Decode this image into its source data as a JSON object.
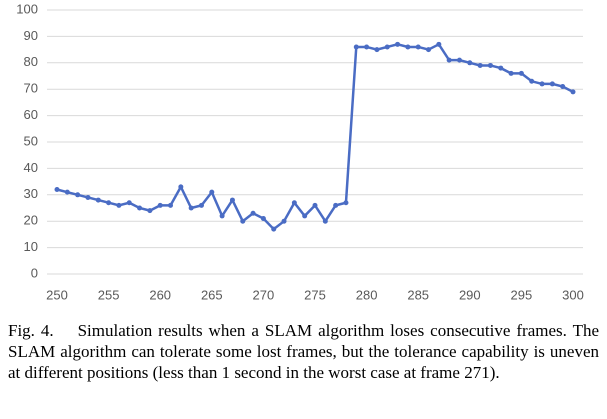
{
  "chart_data": {
    "type": "line",
    "x": [
      250,
      251,
      252,
      253,
      254,
      255,
      256,
      257,
      258,
      259,
      260,
      261,
      262,
      263,
      264,
      265,
      266,
      267,
      268,
      269,
      270,
      271,
      272,
      273,
      274,
      275,
      276,
      277,
      278,
      279,
      280,
      281,
      282,
      283,
      284,
      285,
      286,
      287,
      288,
      289,
      290,
      291,
      292,
      293,
      294,
      295,
      296,
      297,
      298,
      299,
      300
    ],
    "series": [
      {
        "color": "#4a6cc4",
        "values": [
          32,
          31,
          30,
          29,
          28,
          27,
          26,
          27,
          25,
          24,
          26,
          26,
          33,
          25,
          26,
          31,
          22,
          28,
          20,
          23,
          21,
          17,
          20,
          27,
          22,
          26,
          20,
          26,
          27,
          86,
          86,
          85,
          86,
          87,
          86,
          86,
          85,
          87,
          81,
          81,
          80,
          79,
          79,
          78,
          76,
          76,
          73,
          72,
          72,
          71,
          69
        ]
      }
    ],
    "xlim": [
      250,
      300
    ],
    "xticks": [
      250,
      255,
      260,
      265,
      270,
      275,
      280,
      285,
      290,
      295,
      300
    ],
    "ylim": [
      0,
      100
    ],
    "yticks": [
      0,
      10,
      20,
      30,
      40,
      50,
      60,
      70,
      80,
      90,
      100
    ],
    "grid": true,
    "caption": "Fig. 4.    Simulation results when a SLAM algorithm loses consecutive frames. The SLAM algorithm can tolerate some lost frames, but the tolerance capability is uneven at different positions (less than 1 second in the worst case at frame 271)."
  }
}
